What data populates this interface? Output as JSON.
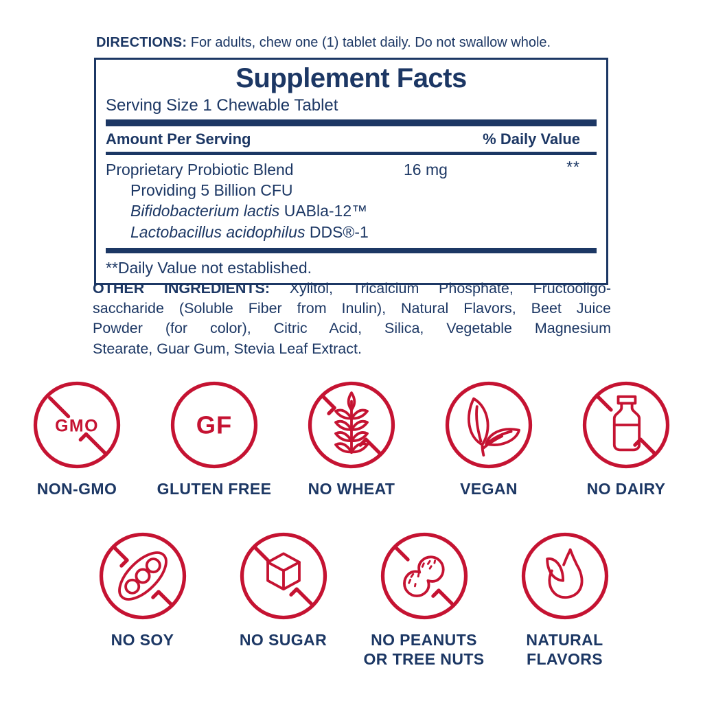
{
  "colors": {
    "navy": "#1c3764",
    "red": "#c51332"
  },
  "directions": {
    "label": "DIRECTIONS:",
    "text": " For adults, chew one (1) tablet daily. Do not swallow whole."
  },
  "supplement_facts": {
    "title": "Supplement Facts",
    "serving_size": "Serving Size 1 Chewable Tablet",
    "amount_header": "Amount Per Serving",
    "dv_header": "% Daily Value",
    "blend": {
      "name": "Proprietary Probiotic Blend",
      "amount": "16 mg",
      "dv": "**",
      "providing": "Providing 5 Billion CFU"
    },
    "strains": [
      {
        "italic": "Bifidobacterium lactis",
        "rest": " UABla-12™"
      },
      {
        "italic": "Lactobacillus acidophilus",
        "rest": " DDS®-1"
      }
    ],
    "footnote": "**Daily Value not established."
  },
  "other_ingredients": {
    "lines": [
      {
        "bold": "OTHER INGREDIENTS:",
        "text": " Xylitol, Tricalcium Phosphate, Fructooligo-"
      },
      {
        "text": "saccharide (Soluble Fiber from Inulin), Natural Flavors, Beet Juice"
      },
      {
        "text": "Powder (for color), Citric Acid, Silica, Vegetable Magnesium"
      },
      {
        "text": "Stearate, Guar Gum, Stevia Leaf Extract."
      }
    ]
  },
  "badges": {
    "row1": [
      {
        "name": "non-gmo",
        "label": "NON-GMO",
        "icon": "no-gmo-icon",
        "icon_text": "GMO"
      },
      {
        "name": "gluten-free",
        "label": "GLUTEN FREE",
        "icon": "gluten-free-icon",
        "icon_text": "GF"
      },
      {
        "name": "no-wheat",
        "label": "NO WHEAT",
        "icon": "no-wheat-icon"
      },
      {
        "name": "vegan",
        "label": "VEGAN",
        "icon": "vegan-leaves-icon"
      },
      {
        "name": "no-dairy",
        "label": "NO DAIRY",
        "icon": "no-dairy-icon"
      }
    ],
    "row2": [
      {
        "name": "no-soy",
        "label": "NO SOY",
        "icon": "no-soy-icon"
      },
      {
        "name": "no-sugar",
        "label": "NO SUGAR",
        "icon": "no-sugar-icon"
      },
      {
        "name": "no-peanuts",
        "label": "NO PEANUTS\nOR TREE NUTS",
        "icon": "no-peanuts-icon"
      },
      {
        "name": "natural-flavors",
        "label": "NATURAL\nFLAVORS",
        "icon": "natural-flavors-icon"
      }
    ]
  }
}
